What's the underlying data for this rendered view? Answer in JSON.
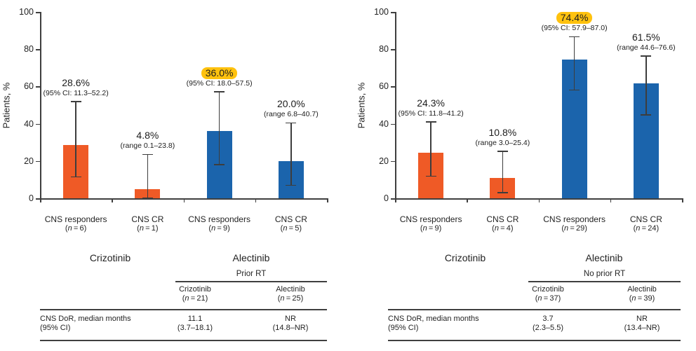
{
  "figure": {
    "ylabel": "Patients, %",
    "yticks": [
      0,
      20,
      40,
      60,
      80,
      100
    ],
    "colors": {
      "crizotinib_orange": "#EF5A26",
      "alectinib_blue": "#1B64AC",
      "highlight_yellow": "#FFC20E",
      "axis_dark": "#3d3d3d",
      "text_dark": "#232323"
    }
  },
  "chart_data": [
    {
      "type": "bar",
      "panel": "left",
      "ylabel": "Patients, %",
      "ylim": [
        0,
        100
      ],
      "grid": false,
      "group_labels": [
        "Crizotinib",
        "Alectinib"
      ],
      "bars": [
        {
          "category": "CNS responders",
          "n": 6,
          "value": 28.6,
          "err_lo": 11.3,
          "err_hi": 52.2,
          "label": "28.6%",
          "sublabel": "(95% CI: 11.3–52.2)",
          "series": "Crizotinib",
          "color": "orange",
          "highlighted": false
        },
        {
          "category": "CNS CR",
          "n": 1,
          "value": 4.8,
          "err_lo": 0.1,
          "err_hi": 23.8,
          "label": "4.8%",
          "sublabel": "(range 0.1–23.8)",
          "series": "Crizotinib",
          "color": "orange",
          "highlighted": false
        },
        {
          "category": "CNS responders",
          "n": 9,
          "value": 36.0,
          "err_lo": 18.0,
          "err_hi": 57.5,
          "label": "36.0%",
          "sublabel": "(95% CI: 18.0–57.5)",
          "series": "Alectinib",
          "color": "blue",
          "highlighted": true
        },
        {
          "category": "CNS CR",
          "n": 5,
          "value": 20.0,
          "err_lo": 6.8,
          "err_hi": 40.7,
          "label": "20.0%",
          "sublabel": "(range 6.8–40.7)",
          "series": "Alectinib",
          "color": "blue",
          "highlighted": false
        }
      ],
      "table": {
        "span_header": "Prior RT",
        "columns": [
          {
            "name": "Crizotinib",
            "n": 21
          },
          {
            "name": "Alectinib",
            "n": 25
          }
        ],
        "row_label_line1": "CNS DoR, median months",
        "row_label_line2": "(95% CI)",
        "values": [
          {
            "line1": "11.1",
            "line2": "(3.7–18.1)"
          },
          {
            "line1": "NR",
            "line2": "(14.8–NR)"
          }
        ]
      }
    },
    {
      "type": "bar",
      "panel": "right",
      "ylabel": "Patients, %",
      "ylim": [
        0,
        100
      ],
      "grid": false,
      "group_labels": [
        "Crizotinib",
        "Alectinib"
      ],
      "bars": [
        {
          "category": "CNS responders",
          "n": 9,
          "value": 24.3,
          "err_lo": 11.8,
          "err_hi": 41.2,
          "label": "24.3%",
          "sublabel": "(95% CI: 11.8–41.2)",
          "series": "Crizotinib",
          "color": "orange",
          "highlighted": false
        },
        {
          "category": "CNS CR",
          "n": 4,
          "value": 10.8,
          "err_lo": 3.0,
          "err_hi": 25.4,
          "label": "10.8%",
          "sublabel": "(range 3.0–25.4)",
          "series": "Crizotinib",
          "color": "orange",
          "highlighted": false
        },
        {
          "category": "CNS responders",
          "n": 29,
          "value": 74.4,
          "err_lo": 57.9,
          "err_hi": 87.0,
          "label": "74.4%",
          "sublabel": "(95% CI: 57.9–87.0)",
          "series": "Alectinib",
          "color": "blue",
          "highlighted": true
        },
        {
          "category": "CNS CR",
          "n": 24,
          "value": 61.5,
          "err_lo": 44.6,
          "err_hi": 76.6,
          "label": "61.5%",
          "sublabel": "(range 44.6–76.6)",
          "series": "Alectinib",
          "color": "blue",
          "highlighted": false
        }
      ],
      "table": {
        "span_header": "No prior RT",
        "columns": [
          {
            "name": "Crizotinib",
            "n": 37
          },
          {
            "name": "Alectinib",
            "n": 39
          }
        ],
        "row_label_line1": "CNS DoR, median months",
        "row_label_line2": "(95% CI)",
        "values": [
          {
            "line1": "3.7",
            "line2": "(2.3–5.5)"
          },
          {
            "line1": "NR",
            "line2": "(13.4–NR)"
          }
        ]
      }
    }
  ]
}
